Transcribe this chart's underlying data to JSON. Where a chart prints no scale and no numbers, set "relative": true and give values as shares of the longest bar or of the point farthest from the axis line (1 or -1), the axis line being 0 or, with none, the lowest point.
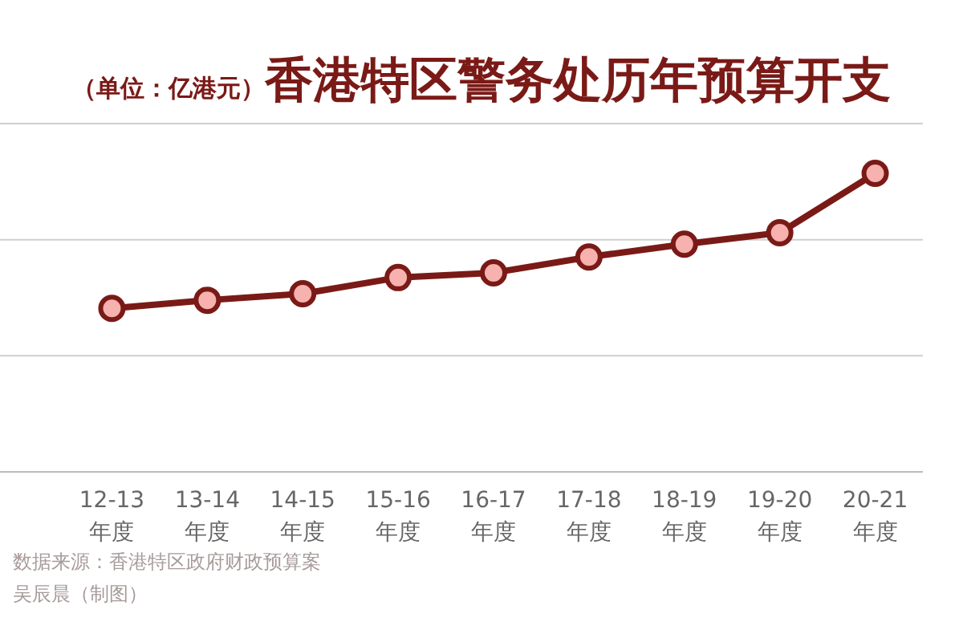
{
  "chart_data": {
    "type": "line",
    "title": "香港特区警务处历年预算开支",
    "subtitle": "（单位：亿港元）",
    "categories": [
      "12-13\n年度",
      "13-14\n年度",
      "14-15\n年度",
      "15-16\n年度",
      "16-17\n年度",
      "17-18\n年度",
      "18-19\n年度",
      "19-20\n年度",
      "20-21\n年度"
    ],
    "series": [
      {
        "color": "#7a1a17",
        "values": [
          0.548,
          0.575,
          0.597,
          0.651,
          0.667,
          0.72,
          0.763,
          0.801,
          1
        ]
      }
    ],
    "relative": true,
    "marker": "circle",
    "line_style": "solid",
    "ref_lines": [
      {
        "axis": "y",
        "value": 0.389,
        "color": "#cfcfcf"
      },
      {
        "axis": "y",
        "value": 0.778,
        "color": "#cfcfcf"
      },
      {
        "axis": "y",
        "value": 1.167,
        "color": "#cfcfcf"
      }
    ],
    "annotations": [
      "数据来源：香港特区政府财政预算案",
      "吴辰晨（制图）"
    ]
  }
}
